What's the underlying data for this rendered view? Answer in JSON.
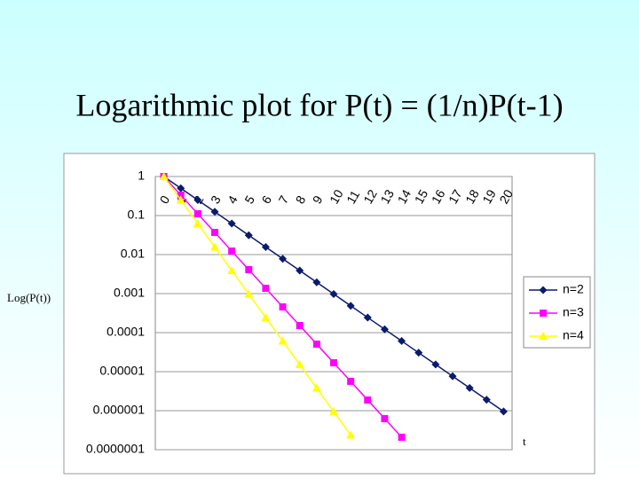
{
  "chart_data": {
    "type": "line",
    "title": "Logarithmic plot for P(t) = (1/n)P(t-1)",
    "y_label": "Log(P(t))",
    "x_label": "t",
    "categories": [
      "0",
      "1",
      "2",
      "3",
      "4",
      "5",
      "6",
      "7",
      "8",
      "9",
      "10",
      "11",
      "12",
      "13",
      "14",
      "15",
      "16",
      "17",
      "18",
      "19",
      "20"
    ],
    "log_scale": true,
    "grid": true,
    "legend": "right",
    "ylim": [
      1e-07,
      1
    ],
    "yticks": [
      1,
      0.1,
      0.01,
      0.001,
      0.0001,
      1e-05,
      1e-06,
      {
        "value": 1e-07,
        "label": "0.0000001"
      }
    ],
    "series": [
      {
        "name": "n=2",
        "color": "#0a1a6e",
        "marker": "diamond",
        "values": [
          1,
          0.5,
          0.25,
          0.125,
          0.0625,
          0.03125,
          0.015625,
          0.0078125,
          0.00390625,
          0.001953125,
          0.0009765625,
          0.00048828125,
          0.000244140625,
          0.0001220703125,
          6.103515625e-05,
          3.0517578125e-05,
          1.52587890625e-05,
          7.62939453125e-06,
          3.814697265625e-06,
          1.9073486328125e-06,
          9.5367431640625e-07
        ]
      },
      {
        "name": "n=3",
        "color": "#ff00ff",
        "marker": "square",
        "values": [
          1,
          0.333,
          0.111,
          0.037,
          0.0123,
          0.00412,
          0.00137,
          0.000457,
          0.000152,
          5.08e-05,
          1.69e-05,
          5.65e-06,
          1.88e-06,
          6.27e-07,
          2.09e-07,
          null,
          null,
          null,
          null,
          null,
          null
        ]
      },
      {
        "name": "n=4",
        "color": "#ffff00",
        "marker": "triangle",
        "values": [
          1,
          0.25,
          0.0625,
          0.0156,
          0.00391,
          0.000977,
          0.000244,
          6.1e-05,
          1.53e-05,
          3.81e-06,
          9.54e-07,
          2.38e-07,
          null,
          null,
          null,
          null,
          null,
          null,
          null,
          null,
          null
        ]
      }
    ]
  }
}
